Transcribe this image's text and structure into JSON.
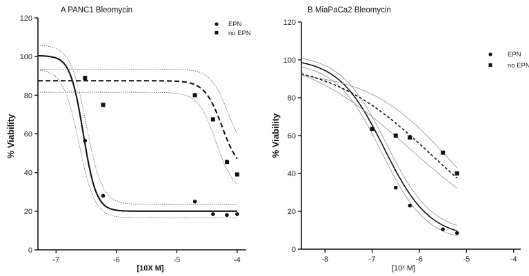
{
  "chart_data": [
    {
      "type": "scatter",
      "title": "A PANC1 Bleomycin",
      "xlabel": "[10X M]",
      "ylabel": "% Viability",
      "xlim": [
        -7.3,
        -3.85
      ],
      "ylim": [
        0,
        120
      ],
      "xticks": [
        -7,
        -6,
        -5,
        -4
      ],
      "xtick_labels": [
        "-7",
        "-6",
        "-5",
        "-4"
      ],
      "yticks": [
        0,
        20,
        40,
        60,
        80,
        100,
        120
      ],
      "ytick_labels": [
        "0",
        "20",
        "40",
        "60",
        "80",
        "100",
        "120"
      ],
      "legend": "top-right",
      "series": [
        {
          "name": "EPN",
          "marker": "circle",
          "line": "solid",
          "x": [
            -6.52,
            -6.22,
            -4.7,
            -4.4,
            -4.17,
            -4.0
          ],
          "y": [
            56.5,
            28,
            25,
            18.5,
            18,
            18.5
          ],
          "fit": {
            "bottom": 20,
            "top": 100.5,
            "logec50": -6.55,
            "hill": -4.0
          },
          "ci_upper": {
            "bottom": 23.5,
            "top": 106,
            "logec50": -6.5,
            "hill": -3.3
          },
          "ci_lower": {
            "bottom": 16.5,
            "top": 93.5,
            "logec50": -6.62,
            "hill": -3.3
          }
        },
        {
          "name": "no EPN",
          "marker": "square",
          "line": "dashed",
          "x": [
            -6.52,
            -6.22,
            -4.7,
            -4.4,
            -4.17,
            -4.0
          ],
          "y": [
            89,
            75,
            80,
            67.5,
            45.5,
            39
          ],
          "fit": {
            "bottom": 40,
            "top": 87.5,
            "logec50": -4.25,
            "hill": -3.0
          },
          "ci_upper": {
            "bottom": 48,
            "top": 93.5,
            "logec50": -4.15,
            "hill": -3.0
          },
          "ci_lower": {
            "bottom": 30,
            "top": 81.5,
            "logec50": -4.35,
            "hill": -3.0
          }
        }
      ]
    },
    {
      "type": "scatter",
      "title": "B MiaPaCa2 Bleomycin",
      "xlabel": "[10ˣ M]",
      "ylabel": "% Viability",
      "xlim": [
        -8.5,
        -3.85
      ],
      "ylim": [
        0,
        120
      ],
      "xticks": [
        -8,
        -7,
        -6,
        -5,
        -4
      ],
      "xtick_labels": [
        "-8",
        "-7",
        "-6",
        "-5",
        "-4"
      ],
      "yticks": [
        0,
        20,
        40,
        60,
        80,
        100,
        120
      ],
      "ytick_labels": [
        "0",
        "20",
        "40",
        "60",
        "80",
        "100",
        "120"
      ],
      "legend": "top-right",
      "series": [
        {
          "name": "EPN",
          "marker": "circle",
          "line": "solid",
          "x": [
            -7.0,
            -6.5,
            -6.2,
            -5.5,
            -5.2
          ],
          "y": [
            63.5,
            32.5,
            23,
            10.5,
            8.5
          ],
          "fit": {
            "bottom": 6,
            "top": 101,
            "logec50": -6.75,
            "hill": -0.9
          },
          "ci_upper": {
            "bottom": 8.5,
            "top": 103,
            "logec50": -6.7,
            "hill": -0.9
          },
          "ci_lower": {
            "bottom": 3.5,
            "top": 99,
            "logec50": -6.8,
            "hill": -0.9
          }
        },
        {
          "name": "no EPN",
          "marker": "square",
          "line": "dashed",
          "x": [
            -7.0,
            -6.5,
            -6.2,
            -5.5,
            -5.2
          ],
          "y": [
            63.5,
            60,
            59,
            51,
            40
          ],
          "fit": {
            "bottom": 0,
            "top": 100,
            "logec50": -5.75,
            "hill": -0.4
          },
          "ci_upper": {
            "bottom": 0,
            "top": 94,
            "logec50": -5.35,
            "hill": -0.5
          },
          "ci_lower": {
            "bottom": 0,
            "top": 106,
            "logec50": -6.2,
            "hill": -0.36
          }
        }
      ]
    }
  ]
}
